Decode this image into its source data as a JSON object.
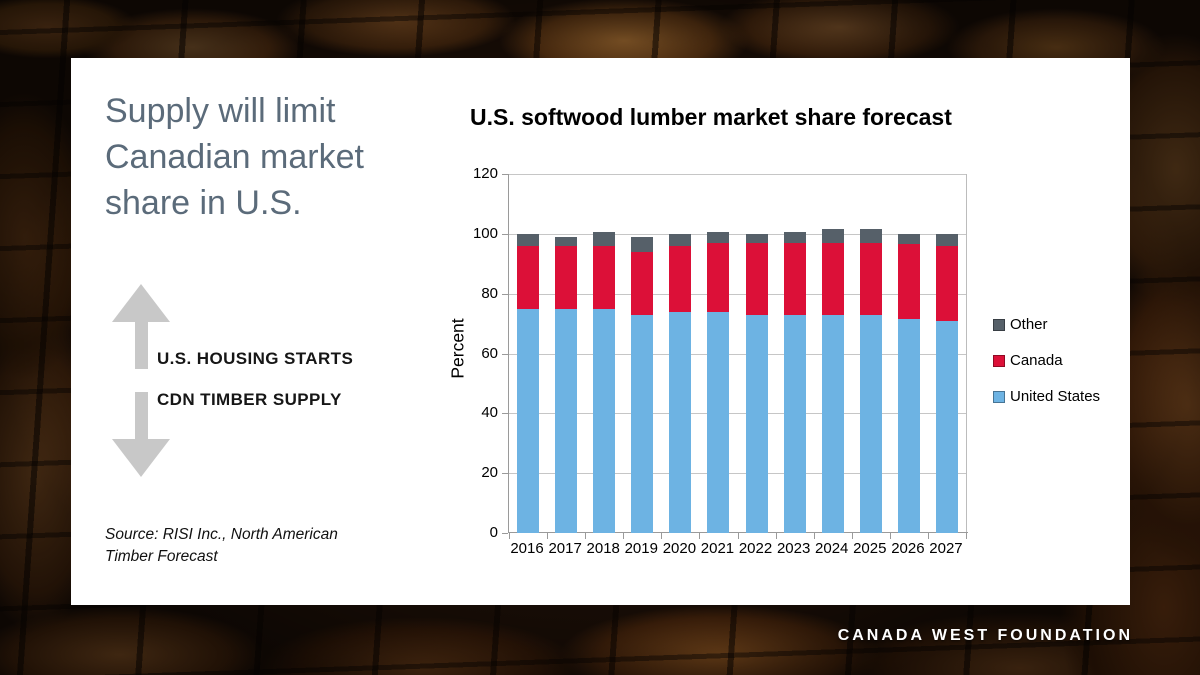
{
  "slide": {
    "title": "Supply will limit Canadian market share in U.S.",
    "footer": "CANADA WEST FOUNDATION"
  },
  "left_panel": {
    "up_arrow_label": "U.S. HOUSING STARTS",
    "down_arrow_label": "CDN TIMBER SUPPLY",
    "source": "Source: RISI Inc., North American\nTimber Forecast"
  },
  "chart_data": {
    "type": "bar",
    "stacked": true,
    "title": "U.S. softwood lumber market share forecast",
    "xlabel": "",
    "ylabel": "Percent",
    "ylim": [
      0,
      120
    ],
    "ytick_step": 20,
    "grid": true,
    "legend_position": "right",
    "categories": [
      "2016",
      "2017",
      "2018",
      "2019",
      "2020",
      "2021",
      "2022",
      "2023",
      "2024",
      "2025",
      "2026",
      "2027"
    ],
    "series": [
      {
        "name": "United States",
        "color": "#6db3e3",
        "values": [
          75,
          75,
          75,
          73,
          74,
          74,
          73,
          73,
          73,
          73,
          71.5,
          71
        ]
      },
      {
        "name": "Canada",
        "color": "#dc1038",
        "values": [
          21,
          21,
          21,
          21,
          22,
          23,
          24,
          24,
          24,
          24,
          25,
          25
        ]
      },
      {
        "name": "Other",
        "color": "#566069",
        "values": [
          4,
          3,
          4.5,
          5,
          4,
          3.5,
          3,
          3.5,
          4.5,
          4.5,
          3.5,
          4
        ]
      }
    ],
    "legend_order": [
      "Other",
      "Canada",
      "United States"
    ]
  },
  "colors": {
    "title_text": "#5b6b7a",
    "arrow_gray": "#c8c8c8",
    "us_blue": "#6db3e3",
    "canada_red": "#dc1038",
    "other_gray": "#566069",
    "gridline": "#c6c6c6"
  }
}
